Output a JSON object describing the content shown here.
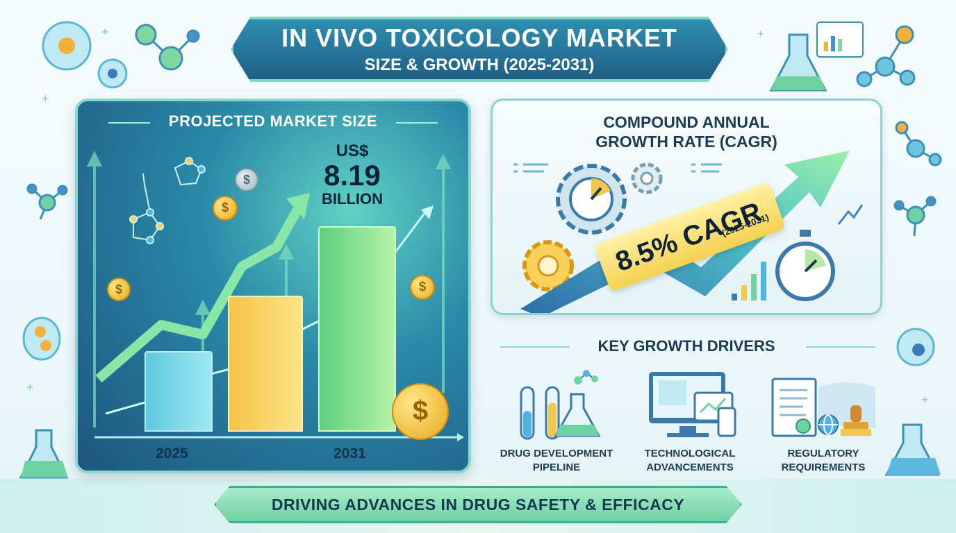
{
  "title": {
    "line1": "IN VIVO TOXICOLOGY MARKET",
    "line2": "SIZE & GROWTH (2025-2031)"
  },
  "market_panel": {
    "heading": "PROJECTED MARKET SIZE",
    "currency": "US$",
    "value": "8.19",
    "unit": "BILLION",
    "year_start": "2025",
    "year_end": "2031"
  },
  "cagr_panel": {
    "heading_line1": "COMPOUND ANNUAL",
    "heading_line2": "GROWTH RATE (CAGR)",
    "value": "8.5% CAGR",
    "period": "(2025-2031)"
  },
  "drivers": {
    "heading": "KEY GROWTH DRIVERS",
    "items": [
      {
        "line1": "DRUG DEVELOPMENT",
        "line2": "PIPELINE"
      },
      {
        "line1": "TECHNOLOGICAL",
        "line2": "ADVANCEMENTS"
      },
      {
        "line1": "REGULATORY",
        "line2": "REQUIREMENTS"
      }
    ]
  },
  "footer": {
    "text": "DRIVING ADVANCES IN DRUG SAFETY & EFFICACY"
  },
  "colors": {
    "title_bg": "#1f5f86",
    "panel_bg": "#2a89a8",
    "bar_blue": "#6ad0e6",
    "bar_yellow": "#f5cf4b",
    "bar_green": "#7fe07e",
    "badge": "#f5d150",
    "coin": "#e8a61a"
  },
  "icons": [
    "cell-icon",
    "molecule-icon",
    "flask-icon",
    "dollar-coin-icon",
    "gear-icon",
    "stopwatch-icon",
    "test-tubes-icon",
    "computer-icon",
    "document-icon",
    "globe-icon",
    "stamp-icon",
    "growth-arrow-icon"
  ]
}
